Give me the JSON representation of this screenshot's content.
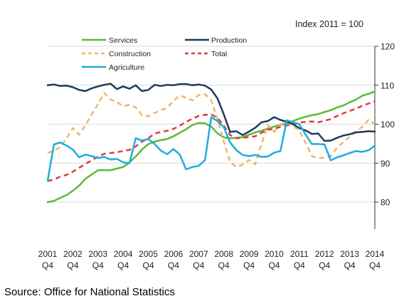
{
  "chart_data": {
    "type": "line",
    "title": "",
    "subtitle": "Index 2011 = 100",
    "xlabel": "",
    "ylabel": "",
    "ylim": [
      80,
      120
    ],
    "y_axis_position": "right",
    "yticks": [
      80,
      90,
      100,
      110,
      120
    ],
    "xlim": [
      2001.75,
      2014.75
    ],
    "xticks": [
      {
        "year": "2001",
        "q": "Q4"
      },
      {
        "year": "2002",
        "q": "Q4"
      },
      {
        "year": "2003",
        "q": "Q4"
      },
      {
        "year": "2004",
        "q": "Q4"
      },
      {
        "year": "2005",
        "q": "Q4"
      },
      {
        "year": "2006",
        "q": "Q4"
      },
      {
        "year": "2007",
        "q": "Q4"
      },
      {
        "year": "2008",
        "q": "Q4"
      },
      {
        "year": "2009",
        "q": "Q4"
      },
      {
        "year": "2010",
        "q": "Q4"
      },
      {
        "year": "2011",
        "q": "Q4"
      },
      {
        "year": "2012",
        "q": "Q4"
      },
      {
        "year": "2013",
        "q": "Q4"
      },
      {
        "year": "2014",
        "q": "Q4"
      }
    ],
    "grid": "horizontal",
    "legend_position": "top-left",
    "series": [
      {
        "name": "Services",
        "color": "#5cb83c",
        "dash": "solid",
        "points": [
          [
            2001.75,
            80.0
          ],
          [
            2002.0,
            80.3
          ],
          [
            2002.25,
            81.1
          ],
          [
            2002.5,
            81.8
          ],
          [
            2002.75,
            82.9
          ],
          [
            2003.0,
            84.2
          ],
          [
            2003.25,
            86.0
          ],
          [
            2003.5,
            87.1
          ],
          [
            2003.75,
            88.2
          ],
          [
            2004.0,
            88.2
          ],
          [
            2004.25,
            88.2
          ],
          [
            2004.5,
            88.6
          ],
          [
            2004.75,
            89.0
          ],
          [
            2005.0,
            90.2
          ],
          [
            2005.25,
            91.7
          ],
          [
            2005.5,
            93.5
          ],
          [
            2005.75,
            94.9
          ],
          [
            2006.0,
            95.5
          ],
          [
            2006.25,
            95.9
          ],
          [
            2006.5,
            96.2
          ],
          [
            2006.75,
            96.9
          ],
          [
            2007.0,
            97.8
          ],
          [
            2007.25,
            98.7
          ],
          [
            2007.5,
            99.8
          ],
          [
            2007.75,
            100.3
          ],
          [
            2008.0,
            100.2
          ],
          [
            2008.25,
            99.4
          ],
          [
            2008.5,
            97.6
          ],
          [
            2008.75,
            96.6
          ],
          [
            2009.0,
            96.4
          ],
          [
            2009.25,
            96.5
          ],
          [
            2009.5,
            96.7
          ],
          [
            2009.75,
            97.3
          ],
          [
            2010.0,
            97.9
          ],
          [
            2010.25,
            98.3
          ],
          [
            2010.5,
            98.9
          ],
          [
            2010.75,
            99.4
          ],
          [
            2011.0,
            99.8
          ],
          [
            2011.25,
            100.3
          ],
          [
            2011.5,
            100.8
          ],
          [
            2011.75,
            101.4
          ],
          [
            2012.0,
            101.9
          ],
          [
            2012.25,
            102.3
          ],
          [
            2012.5,
            102.6
          ],
          [
            2012.75,
            103.1
          ],
          [
            2013.0,
            103.6
          ],
          [
            2013.25,
            104.3
          ],
          [
            2013.5,
            104.8
          ],
          [
            2013.75,
            105.6
          ],
          [
            2014.0,
            106.3
          ],
          [
            2014.25,
            107.3
          ],
          [
            2014.5,
            107.8
          ],
          [
            2014.75,
            108.4
          ]
        ]
      },
      {
        "name": "Production",
        "color": "#1f3a5f",
        "dash": "solid",
        "points": [
          [
            2001.75,
            110.0
          ],
          [
            2002.0,
            110.2
          ],
          [
            2002.25,
            109.8
          ],
          [
            2002.5,
            109.9
          ],
          [
            2002.75,
            109.5
          ],
          [
            2003.0,
            108.8
          ],
          [
            2003.25,
            108.5
          ],
          [
            2003.5,
            109.2
          ],
          [
            2003.75,
            109.7
          ],
          [
            2004.0,
            110.1
          ],
          [
            2004.25,
            110.4
          ],
          [
            2004.5,
            109.0
          ],
          [
            2004.75,
            109.7
          ],
          [
            2005.0,
            109.1
          ],
          [
            2005.25,
            110.0
          ],
          [
            2005.5,
            108.5
          ],
          [
            2005.75,
            108.8
          ],
          [
            2006.0,
            110.1
          ],
          [
            2006.25,
            109.8
          ],
          [
            2006.5,
            110.1
          ],
          [
            2006.75,
            110.0
          ],
          [
            2007.0,
            110.3
          ],
          [
            2007.25,
            110.3
          ],
          [
            2007.5,
            110.0
          ],
          [
            2007.75,
            110.2
          ],
          [
            2008.0,
            109.9
          ],
          [
            2008.25,
            108.9
          ],
          [
            2008.5,
            106.6
          ],
          [
            2008.75,
            102.5
          ],
          [
            2009.0,
            98.0
          ],
          [
            2009.25,
            98.2
          ],
          [
            2009.5,
            97.2
          ],
          [
            2009.75,
            98.1
          ],
          [
            2010.0,
            99.1
          ],
          [
            2010.25,
            100.5
          ],
          [
            2010.5,
            100.8
          ],
          [
            2010.75,
            101.8
          ],
          [
            2011.0,
            101.1
          ],
          [
            2011.25,
            100.6
          ],
          [
            2011.5,
            100.0
          ],
          [
            2011.75,
            99.0
          ],
          [
            2012.0,
            98.4
          ],
          [
            2012.25,
            97.5
          ],
          [
            2012.5,
            97.6
          ],
          [
            2012.75,
            95.7
          ],
          [
            2013.0,
            95.8
          ],
          [
            2013.25,
            96.5
          ],
          [
            2013.5,
            97.1
          ],
          [
            2013.75,
            97.4
          ],
          [
            2014.0,
            97.9
          ],
          [
            2014.25,
            98.0
          ],
          [
            2014.5,
            98.2
          ],
          [
            2014.75,
            98.1
          ]
        ]
      },
      {
        "name": "Construction",
        "color": "#f2b56b",
        "dash": "dashed",
        "points": [
          [
            2001.75,
            92.6
          ],
          [
            2002.0,
            93.2
          ],
          [
            2002.25,
            94.1
          ],
          [
            2002.5,
            96.4
          ],
          [
            2002.75,
            99.0
          ],
          [
            2003.0,
            97.3
          ],
          [
            2003.25,
            99.7
          ],
          [
            2003.5,
            102.5
          ],
          [
            2003.75,
            105.2
          ],
          [
            2004.0,
            108.0
          ],
          [
            2004.25,
            106.3
          ],
          [
            2004.5,
            105.7
          ],
          [
            2004.75,
            104.6
          ],
          [
            2005.0,
            105.0
          ],
          [
            2005.25,
            104.3
          ],
          [
            2005.5,
            102.3
          ],
          [
            2005.75,
            102.0
          ],
          [
            2006.0,
            102.9
          ],
          [
            2006.25,
            103.6
          ],
          [
            2006.5,
            104.2
          ],
          [
            2006.75,
            106.0
          ],
          [
            2007.0,
            107.4
          ],
          [
            2007.25,
            106.8
          ],
          [
            2007.5,
            106.1
          ],
          [
            2007.75,
            107.5
          ],
          [
            2008.0,
            107.7
          ],
          [
            2008.25,
            106.1
          ],
          [
            2008.5,
            101.3
          ],
          [
            2008.75,
            95.5
          ],
          [
            2009.0,
            90.3
          ],
          [
            2009.25,
            89.0
          ],
          [
            2009.5,
            89.6
          ],
          [
            2009.75,
            90.8
          ],
          [
            2010.0,
            89.7
          ],
          [
            2010.25,
            95.0
          ],
          [
            2010.5,
            99.8
          ],
          [
            2010.75,
            98.0
          ],
          [
            2011.0,
            100.0
          ],
          [
            2011.25,
            100.0
          ],
          [
            2011.5,
            99.5
          ],
          [
            2011.75,
            98.4
          ],
          [
            2012.0,
            95.2
          ],
          [
            2012.25,
            91.8
          ],
          [
            2012.5,
            91.3
          ],
          [
            2012.75,
            91.4
          ],
          [
            2013.0,
            91.8
          ],
          [
            2013.25,
            94.0
          ],
          [
            2013.5,
            95.4
          ],
          [
            2013.75,
            96.8
          ],
          [
            2014.0,
            98.2
          ],
          [
            2014.25,
            99.3
          ],
          [
            2014.5,
            101.1
          ],
          [
            2014.75,
            100.0
          ]
        ]
      },
      {
        "name": "Total",
        "color": "#e03c3c",
        "dash": "dashed",
        "points": [
          [
            2001.75,
            85.4
          ],
          [
            2002.0,
            85.8
          ],
          [
            2002.25,
            86.5
          ],
          [
            2002.5,
            87.0
          ],
          [
            2002.75,
            87.8
          ],
          [
            2003.0,
            88.8
          ],
          [
            2003.25,
            89.8
          ],
          [
            2003.5,
            90.7
          ],
          [
            2003.75,
            91.7
          ],
          [
            2004.0,
            92.4
          ],
          [
            2004.25,
            92.6
          ],
          [
            2004.5,
            92.8
          ],
          [
            2004.75,
            93.1
          ],
          [
            2005.0,
            93.4
          ],
          [
            2005.25,
            94.3
          ],
          [
            2005.5,
            95.5
          ],
          [
            2005.75,
            96.4
          ],
          [
            2006.0,
            97.6
          ],
          [
            2006.25,
            98.0
          ],
          [
            2006.5,
            98.3
          ],
          [
            2006.75,
            98.8
          ],
          [
            2007.0,
            99.6
          ],
          [
            2007.25,
            100.6
          ],
          [
            2007.5,
            101.4
          ],
          [
            2007.75,
            102.1
          ],
          [
            2008.0,
            102.4
          ],
          [
            2008.25,
            102.5
          ],
          [
            2008.5,
            101.6
          ],
          [
            2008.75,
            99.6
          ],
          [
            2009.0,
            97.2
          ],
          [
            2009.25,
            96.4
          ],
          [
            2009.5,
            96.5
          ],
          [
            2009.75,
            96.7
          ],
          [
            2010.0,
            96.9
          ],
          [
            2010.25,
            97.8
          ],
          [
            2010.5,
            98.6
          ],
          [
            2010.75,
            98.8
          ],
          [
            2011.0,
            99.3
          ],
          [
            2011.25,
            99.7
          ],
          [
            2011.5,
            99.9
          ],
          [
            2011.75,
            100.4
          ],
          [
            2012.0,
            100.6
          ],
          [
            2012.25,
            100.7
          ],
          [
            2012.5,
            100.5
          ],
          [
            2012.75,
            100.9
          ],
          [
            2013.0,
            101.3
          ],
          [
            2013.25,
            102.1
          ],
          [
            2013.5,
            102.8
          ],
          [
            2013.75,
            103.4
          ],
          [
            2014.0,
            104.0
          ],
          [
            2014.25,
            104.7
          ],
          [
            2014.5,
            105.3
          ],
          [
            2014.75,
            105.9
          ]
        ]
      },
      {
        "name": "Agriculture",
        "color": "#1aaee0",
        "dash": "solid",
        "points": [
          [
            2001.75,
            85.5
          ],
          [
            2002.0,
            94.8
          ],
          [
            2002.25,
            95.3
          ],
          [
            2002.5,
            94.5
          ],
          [
            2002.75,
            93.5
          ],
          [
            2003.0,
            91.5
          ],
          [
            2003.25,
            92.2
          ],
          [
            2003.5,
            91.8
          ],
          [
            2003.75,
            91.3
          ],
          [
            2004.0,
            91.6
          ],
          [
            2004.25,
            90.9
          ],
          [
            2004.5,
            91.1
          ],
          [
            2004.75,
            90.2
          ],
          [
            2005.0,
            90.0
          ],
          [
            2005.25,
            96.4
          ],
          [
            2005.5,
            95.8
          ],
          [
            2005.75,
            96.2
          ],
          [
            2006.0,
            94.9
          ],
          [
            2006.25,
            93.2
          ],
          [
            2006.5,
            92.3
          ],
          [
            2006.75,
            93.6
          ],
          [
            2007.0,
            92.2
          ],
          [
            2007.25,
            88.4
          ],
          [
            2007.5,
            89.0
          ],
          [
            2007.75,
            89.3
          ],
          [
            2008.0,
            90.8
          ],
          [
            2008.25,
            101.8
          ],
          [
            2008.5,
            100.8
          ],
          [
            2008.75,
            99.2
          ],
          [
            2009.0,
            95.3
          ],
          [
            2009.25,
            93.3
          ],
          [
            2009.5,
            92.1
          ],
          [
            2009.75,
            91.8
          ],
          [
            2010.0,
            92.1
          ],
          [
            2010.25,
            91.6
          ],
          [
            2010.5,
            91.7
          ],
          [
            2010.75,
            92.7
          ],
          [
            2011.0,
            93.1
          ],
          [
            2011.25,
            101.0
          ],
          [
            2011.5,
            100.5
          ],
          [
            2011.75,
            100.0
          ],
          [
            2012.0,
            97.3
          ],
          [
            2012.25,
            94.9
          ],
          [
            2012.5,
            94.9
          ],
          [
            2012.75,
            94.8
          ],
          [
            2013.0,
            90.7
          ],
          [
            2013.25,
            91.5
          ],
          [
            2013.5,
            92.0
          ],
          [
            2013.75,
            92.6
          ],
          [
            2014.0,
            93.1
          ],
          [
            2014.25,
            92.9
          ],
          [
            2014.5,
            93.3
          ],
          [
            2014.75,
            94.5
          ]
        ]
      }
    ],
    "source": "Source: Office for National Statistics"
  }
}
